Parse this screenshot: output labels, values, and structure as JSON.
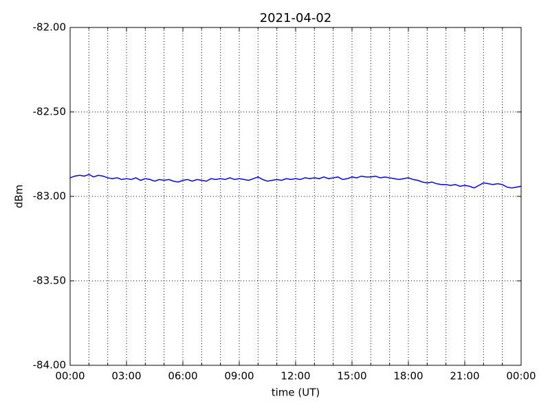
{
  "chart_data": {
    "type": "line",
    "title": "2021-04-02",
    "xlabel": "time (UT)",
    "ylabel": "dBm",
    "color": "#0000ff",
    "x": [
      0,
      0.25,
      0.5,
      0.75,
      1,
      1.25,
      1.5,
      1.75,
      2,
      2.25,
      2.5,
      2.75,
      3,
      3.25,
      3.5,
      3.75,
      4,
      4.25,
      4.5,
      4.75,
      5,
      5.25,
      5.5,
      5.75,
      6,
      6.25,
      6.5,
      6.75,
      7,
      7.25,
      7.5,
      7.75,
      8,
      8.25,
      8.5,
      8.75,
      9,
      9.25,
      9.5,
      9.75,
      10,
      10.25,
      10.5,
      10.75,
      11,
      11.25,
      11.5,
      11.75,
      12,
      12.25,
      12.5,
      12.75,
      13,
      13.25,
      13.5,
      13.75,
      14,
      14.25,
      14.5,
      14.75,
      15,
      15.25,
      15.5,
      15.75,
      16,
      16.25,
      16.5,
      16.75,
      17,
      17.25,
      17.5,
      17.75,
      18,
      18.25,
      18.5,
      18.75,
      19,
      19.25,
      19.5,
      19.75,
      20,
      20.25,
      20.5,
      20.75,
      21,
      21.25,
      21.5,
      21.75,
      22,
      22.25,
      22.5,
      22.75,
      23,
      23.25,
      23.5,
      23.75,
      24
    ],
    "values": [
      -82.89,
      -82.88,
      -82.875,
      -82.88,
      -82.87,
      -82.885,
      -82.875,
      -82.88,
      -82.89,
      -82.895,
      -82.89,
      -82.9,
      -82.895,
      -82.9,
      -82.89,
      -82.905,
      -82.895,
      -82.9,
      -82.91,
      -82.9,
      -82.905,
      -82.9,
      -82.91,
      -82.915,
      -82.905,
      -82.9,
      -82.91,
      -82.9,
      -82.905,
      -82.91,
      -82.895,
      -82.9,
      -82.895,
      -82.9,
      -82.89,
      -82.9,
      -82.895,
      -82.9,
      -82.905,
      -82.895,
      -82.885,
      -82.9,
      -82.91,
      -82.905,
      -82.9,
      -82.905,
      -82.895,
      -82.9,
      -82.895,
      -82.9,
      -82.89,
      -82.895,
      -82.89,
      -82.895,
      -82.885,
      -82.895,
      -82.89,
      -82.885,
      -82.9,
      -82.895,
      -82.885,
      -82.89,
      -82.88,
      -82.885,
      -82.885,
      -82.88,
      -82.89,
      -82.885,
      -82.89,
      -82.895,
      -82.9,
      -82.895,
      -82.89,
      -82.9,
      -82.905,
      -82.915,
      -82.92,
      -82.915,
      -82.925,
      -82.93,
      -82.93,
      -82.935,
      -82.93,
      -82.94,
      -82.935,
      -82.94,
      -82.95,
      -82.935,
      -82.92,
      -82.925,
      -82.93,
      -82.925,
      -82.93,
      -82.945,
      -82.95,
      -82.945,
      -82.94
    ],
    "xlim": [
      0,
      24
    ],
    "xticks": [
      {
        "value": 0,
        "label": "00:00"
      },
      {
        "value": 3,
        "label": "03:00"
      },
      {
        "value": 6,
        "label": "06:00"
      },
      {
        "value": 9,
        "label": "09:00"
      },
      {
        "value": 12,
        "label": "12:00"
      },
      {
        "value": 15,
        "label": "15:00"
      },
      {
        "value": 18,
        "label": "18:00"
      },
      {
        "value": 21,
        "label": "21:00"
      },
      {
        "value": 24,
        "label": "00:00"
      }
    ],
    "xminorticks": [
      1,
      2,
      4,
      5,
      7,
      8,
      10,
      11,
      13,
      14,
      16,
      17,
      19,
      20,
      22,
      23
    ],
    "ylim": [
      -84,
      -82
    ],
    "yticks": [
      {
        "value": -84,
        "label": "-84.00"
      },
      {
        "value": -83.5,
        "label": "-83.50"
      },
      {
        "value": -83,
        "label": "-83.00"
      },
      {
        "value": -82.5,
        "label": "-82.50"
      },
      {
        "value": -82,
        "label": "-82.00"
      }
    ],
    "grid": true
  }
}
